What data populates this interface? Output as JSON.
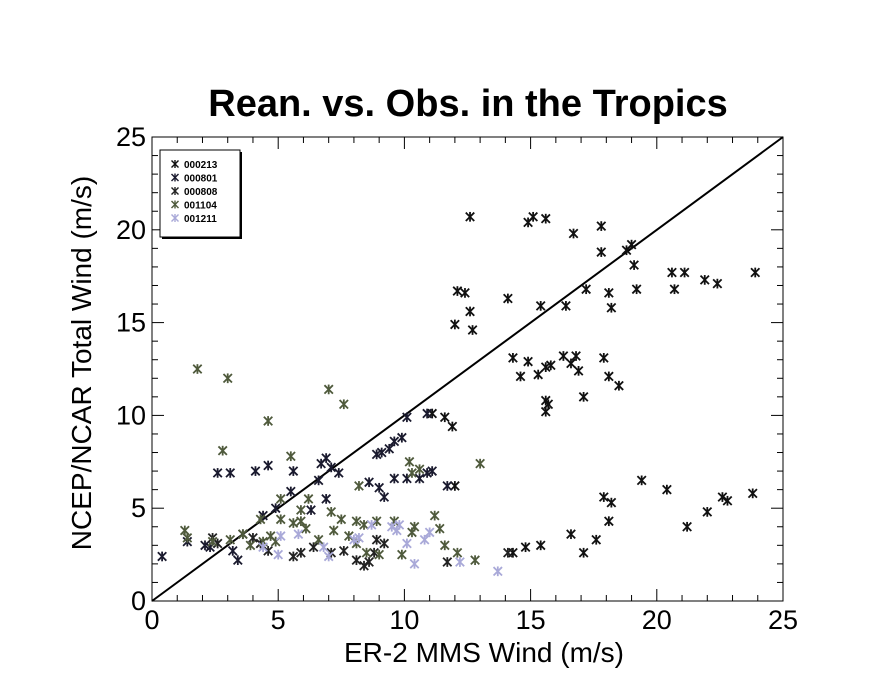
{
  "chart_data": {
    "type": "scatter",
    "title": "Rean. vs. Obs. in the Tropics",
    "xlabel": "ER-2 MMS Wind (m/s)",
    "ylabel": "NCEP/NCAR Total Wind (m/s)",
    "xlim": [
      0,
      25
    ],
    "ylim": [
      0,
      25
    ],
    "xticks": [
      "0",
      "5",
      "10",
      "15",
      "20",
      "25"
    ],
    "yticks": [
      "0",
      "5",
      "10",
      "15",
      "20",
      "25"
    ],
    "grid": false,
    "legend_position": "top-left",
    "reference_line": {
      "x": [
        0,
        25
      ],
      "y": [
        0,
        25
      ],
      "color": "#000000"
    },
    "series": [
      {
        "name": "000213",
        "color": "#111111",
        "points": [
          [
            12.6,
            20.7
          ],
          [
            14.9,
            20.4
          ],
          [
            15.1,
            20.7
          ],
          [
            15.6,
            20.6
          ],
          [
            16.7,
            19.8
          ],
          [
            17.8,
            20.2
          ],
          [
            17.8,
            18.8
          ],
          [
            18.8,
            18.9
          ],
          [
            19.0,
            19.2
          ],
          [
            19.1,
            18.1
          ],
          [
            18.1,
            16.6
          ],
          [
            18.2,
            15.8
          ],
          [
            19.2,
            16.8
          ],
          [
            20.6,
            17.7
          ],
          [
            21.1,
            17.7
          ],
          [
            21.9,
            17.3
          ],
          [
            22.4,
            17.1
          ],
          [
            23.9,
            17.7
          ],
          [
            20.7,
            16.8
          ],
          [
            12.1,
            16.7
          ],
          [
            12.4,
            16.6
          ],
          [
            12.6,
            15.6
          ],
          [
            12.7,
            14.6
          ],
          [
            12.0,
            14.9
          ],
          [
            14.1,
            16.3
          ],
          [
            15.4,
            15.9
          ],
          [
            16.4,
            15.9
          ],
          [
            17.2,
            16.8
          ],
          [
            14.3,
            13.1
          ],
          [
            14.9,
            12.9
          ],
          [
            15.3,
            12.2
          ],
          [
            15.6,
            12.6
          ],
          [
            15.8,
            12.7
          ],
          [
            16.3,
            13.2
          ],
          [
            16.6,
            12.8
          ],
          [
            16.8,
            13.2
          ],
          [
            16.9,
            12.4
          ],
          [
            17.1,
            11.0
          ],
          [
            17.9,
            13.1
          ],
          [
            18.1,
            12.1
          ],
          [
            18.5,
            11.6
          ],
          [
            14.6,
            12.1
          ],
          [
            15.6,
            10.8
          ],
          [
            15.7,
            10.6
          ],
          [
            15.6,
            10.2
          ],
          [
            11.6,
            9.9
          ],
          [
            11.9,
            9.4
          ],
          [
            11.1,
            10.1
          ],
          [
            17.9,
            5.6
          ],
          [
            18.2,
            5.3
          ],
          [
            18.1,
            4.3
          ],
          [
            19.4,
            6.5
          ],
          [
            20.4,
            6.0
          ],
          [
            21.2,
            4.0
          ],
          [
            22.0,
            4.8
          ],
          [
            22.6,
            5.6
          ],
          [
            22.8,
            5.4
          ],
          [
            23.8,
            5.8
          ],
          [
            16.6,
            3.6
          ],
          [
            17.1,
            2.6
          ],
          [
            17.6,
            3.3
          ],
          [
            15.4,
            3.0
          ],
          [
            14.8,
            2.9
          ],
          [
            14.3,
            2.6
          ],
          [
            12.0,
            6.2
          ]
        ]
      },
      {
        "name": "000801",
        "color": "#1a1a2e",
        "points": [
          [
            0.4,
            2.4
          ],
          [
            2.6,
            6.9
          ],
          [
            3.1,
            6.9
          ],
          [
            4.1,
            7.0
          ],
          [
            4.6,
            7.3
          ],
          [
            5.6,
            7.0
          ],
          [
            6.7,
            7.4
          ],
          [
            7.1,
            7.2
          ],
          [
            6.9,
            7.7
          ],
          [
            7.4,
            6.9
          ],
          [
            6.6,
            6.5
          ],
          [
            5.5,
            5.9
          ],
          [
            4.9,
            5.0
          ],
          [
            4.4,
            4.6
          ],
          [
            3.2,
            2.7
          ],
          [
            3.4,
            2.2
          ],
          [
            2.3,
            2.9
          ],
          [
            2.1,
            3.0
          ],
          [
            1.4,
            3.2
          ],
          [
            6.3,
            4.9
          ],
          [
            6.9,
            5.5
          ],
          [
            8.6,
            6.4
          ],
          [
            9.6,
            6.6
          ],
          [
            10.1,
            6.6
          ],
          [
            10.6,
            6.6
          ],
          [
            11.1,
            7.0
          ],
          [
            10.9,
            6.9
          ],
          [
            9.2,
            5.6
          ],
          [
            9.0,
            6.1
          ],
          [
            8.9,
            7.9
          ],
          [
            9.1,
            8.0
          ],
          [
            9.4,
            8.2
          ],
          [
            9.6,
            8.6
          ],
          [
            9.9,
            8.8
          ],
          [
            10.1,
            9.9
          ],
          [
            10.9,
            10.1
          ],
          [
            11.7,
            6.2
          ]
        ]
      },
      {
        "name": "000808",
        "color": "#222222",
        "points": [
          [
            8.6,
            2.1
          ],
          [
            8.4,
            1.9
          ],
          [
            8.8,
            2.6
          ],
          [
            9.2,
            3.1
          ],
          [
            8.1,
            2.2
          ],
          [
            7.6,
            2.7
          ],
          [
            7.1,
            2.6
          ],
          [
            6.4,
            2.9
          ],
          [
            5.9,
            2.6
          ],
          [
            5.6,
            2.4
          ],
          [
            4.6,
            2.7
          ],
          [
            4.3,
            3.1
          ],
          [
            4.0,
            3.4
          ],
          [
            2.6,
            3.1
          ],
          [
            2.4,
            3.4
          ],
          [
            3.6,
            3.6
          ],
          [
            8.9,
            3.3
          ],
          [
            11.7,
            2.1
          ],
          [
            14.1,
            2.6
          ]
        ]
      },
      {
        "name": "001104",
        "color": "#4f5a3c",
        "points": [
          [
            1.8,
            12.5
          ],
          [
            3.0,
            12.0
          ],
          [
            7.0,
            11.4
          ],
          [
            7.6,
            10.6
          ],
          [
            4.6,
            9.7
          ],
          [
            2.8,
            8.1
          ],
          [
            5.5,
            7.8
          ],
          [
            6.2,
            5.5
          ],
          [
            5.9,
            4.9
          ],
          [
            5.1,
            5.5
          ],
          [
            4.3,
            4.4
          ],
          [
            5.1,
            4.4
          ],
          [
            5.9,
            4.3
          ],
          [
            6.1,
            3.9
          ],
          [
            6.6,
            3.3
          ],
          [
            7.2,
            3.8
          ],
          [
            7.5,
            4.4
          ],
          [
            8.1,
            4.3
          ],
          [
            8.4,
            4.1
          ],
          [
            8.9,
            4.3
          ],
          [
            9.6,
            4.3
          ],
          [
            10.2,
            7.5
          ],
          [
            10.6,
            7.1
          ],
          [
            10.3,
            6.9
          ],
          [
            8.2,
            6.2
          ],
          [
            7.1,
            4.8
          ],
          [
            4.4,
            3.2
          ],
          [
            4.7,
            3.5
          ],
          [
            3.9,
            3.0
          ],
          [
            3.1,
            3.3
          ],
          [
            2.4,
            3.2
          ],
          [
            1.3,
            3.8
          ],
          [
            1.4,
            3.4
          ],
          [
            3.6,
            3.6
          ],
          [
            4.9,
            3.2
          ],
          [
            5.6,
            4.2
          ],
          [
            13.0,
            7.4
          ],
          [
            11.2,
            4.6
          ],
          [
            11.4,
            3.9
          ],
          [
            11.6,
            3.0
          ],
          [
            12.1,
            2.6
          ],
          [
            12.8,
            2.2
          ],
          [
            10.3,
            3.7
          ],
          [
            10.4,
            4.0
          ],
          [
            9.9,
            2.5
          ],
          [
            9.0,
            2.5
          ],
          [
            8.5,
            2.6
          ],
          [
            8.1,
            3.1
          ],
          [
            7.8,
            3.5
          ]
        ]
      },
      {
        "name": "001211",
        "color": "#a9a9d8",
        "points": [
          [
            5.1,
            3.5
          ],
          [
            5.0,
            2.5
          ],
          [
            4.4,
            2.9
          ],
          [
            5.8,
            3.6
          ],
          [
            6.8,
            2.9
          ],
          [
            7.0,
            2.4
          ],
          [
            8.0,
            3.3
          ],
          [
            8.2,
            3.4
          ],
          [
            8.7,
            4.1
          ],
          [
            9.5,
            4.0
          ],
          [
            9.7,
            3.8
          ],
          [
            10.1,
            3.1
          ],
          [
            10.4,
            2.0
          ],
          [
            11.0,
            3.7
          ],
          [
            10.8,
            3.3
          ],
          [
            12.2,
            2.1
          ],
          [
            13.7,
            1.6
          ],
          [
            9.8,
            4.1
          ]
        ]
      }
    ]
  }
}
